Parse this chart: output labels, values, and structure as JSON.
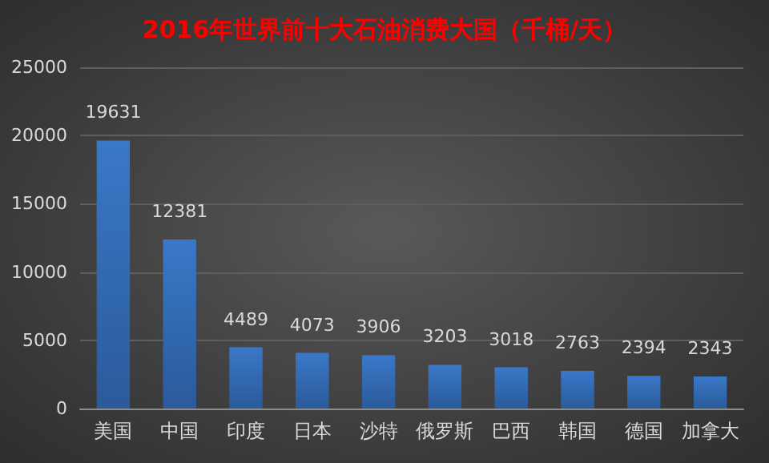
{
  "chart_data": {
    "type": "bar",
    "title": "2016年世界前十大石油消费大国（千桶/天）",
    "categories": [
      "美国",
      "中国",
      "印度",
      "日本",
      "沙特",
      "俄罗斯",
      "巴西",
      "韩国",
      "德国",
      "加拿大"
    ],
    "values": [
      19631,
      12381,
      4489,
      4073,
      3906,
      3203,
      3018,
      2763,
      2394,
      2343
    ],
    "color": "#3a78c8",
    "ylim": [
      0,
      25000
    ],
    "yticks": [
      0,
      5000,
      10000,
      15000,
      20000,
      25000
    ],
    "grid": "y",
    "data_labels": true
  }
}
